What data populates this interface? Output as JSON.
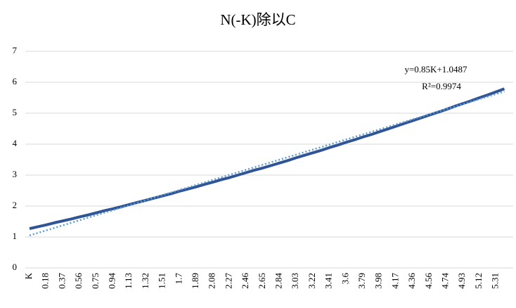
{
  "chart_data": {
    "type": "line",
    "title": "N(-K)除以C",
    "categories": [
      "K",
      null,
      "0.18",
      null,
      "0.37",
      null,
      "0.56",
      null,
      "0.75",
      null,
      "0.94",
      null,
      "1.13",
      null,
      "1.32",
      null,
      "1.51",
      null,
      "1.7",
      null,
      "1.89",
      null,
      "2.08",
      null,
      "2.27",
      null,
      "2.46",
      null,
      "2.65",
      null,
      "2.84",
      null,
      "3.03",
      null,
      "3.22",
      null,
      "3.41",
      null,
      "3.6",
      null,
      "3.79",
      null,
      "3.98",
      null,
      "4.17",
      null,
      "4.36",
      null,
      "4.56",
      null,
      "4.74",
      null,
      "4.93",
      null,
      "5.12",
      null,
      "5.31",
      null
    ],
    "series": [
      {
        "color": "#2f5597",
        "values": [
          1.27,
          1.33,
          1.39,
          1.46,
          1.52,
          1.58,
          1.65,
          1.71,
          1.78,
          1.85,
          1.91,
          1.98,
          2.05,
          2.12,
          2.19,
          2.26,
          2.33,
          2.4,
          2.48,
          2.55,
          2.62,
          2.7,
          2.77,
          2.85,
          2.92,
          3.0,
          3.08,
          3.16,
          3.23,
          3.31,
          3.39,
          3.47,
          3.56,
          3.64,
          3.72,
          3.8,
          3.89,
          3.97,
          4.06,
          4.14,
          4.23,
          4.31,
          4.4,
          4.49,
          4.58,
          4.67,
          4.76,
          4.85,
          4.94,
          5.03,
          5.12,
          5.22,
          5.31,
          5.4,
          5.5,
          5.59,
          5.69,
          5.79
        ]
      }
    ],
    "trendline": {
      "color": "#5b9bd5",
      "values": [
        1.05,
        5.7
      ],
      "equation": "y=0.85K+1.0487",
      "r_squared": "R²=0.9974"
    },
    "ylim": [
      0,
      7
    ],
    "yticks": [
      0,
      1,
      2,
      3,
      4,
      5,
      6,
      7
    ],
    "grid": true
  }
}
